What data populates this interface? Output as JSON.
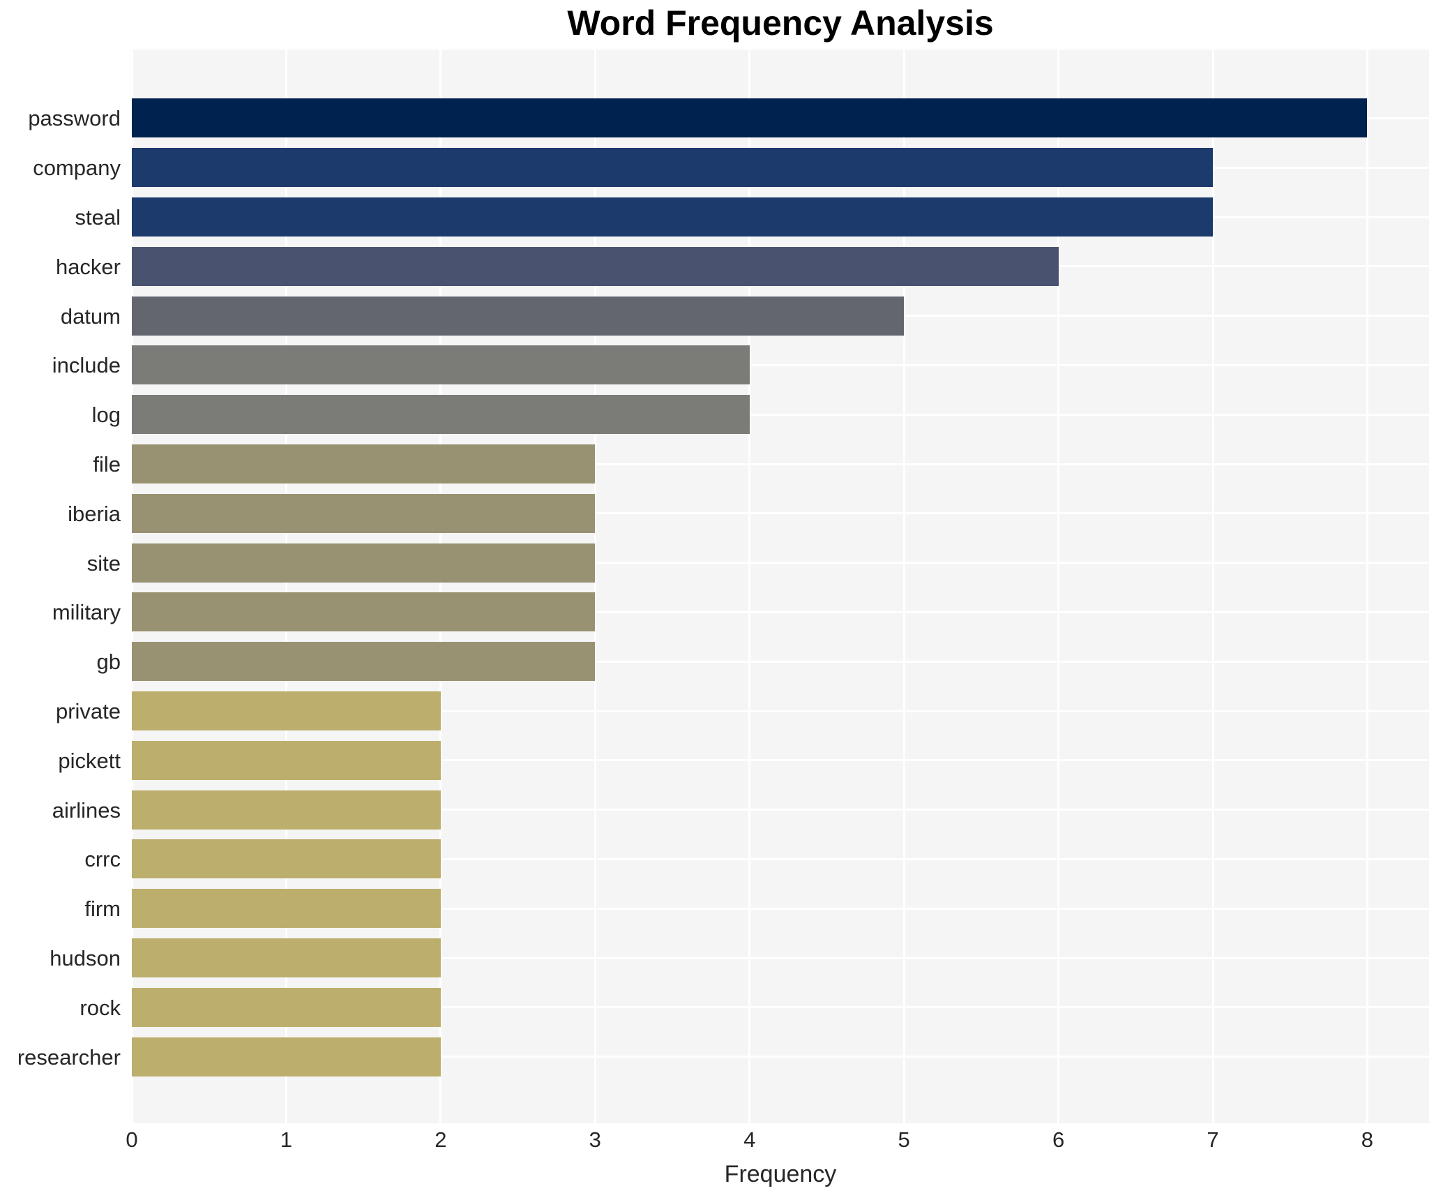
{
  "chart_data": {
    "type": "bar",
    "orientation": "horizontal",
    "title": "Word Frequency Analysis",
    "xlabel": "Frequency",
    "ylabel": "",
    "categories": [
      "password",
      "company",
      "steal",
      "hacker",
      "datum",
      "include",
      "log",
      "file",
      "iberia",
      "site",
      "military",
      "gb",
      "private",
      "pickett",
      "airlines",
      "crrc",
      "firm",
      "hudson",
      "rock",
      "researcher"
    ],
    "values": [
      8,
      7,
      7,
      6,
      5,
      4,
      4,
      3,
      3,
      3,
      3,
      3,
      2,
      2,
      2,
      2,
      2,
      2,
      2,
      2
    ],
    "bar_colors": [
      "#00224e",
      "#1d3a6d",
      "#1d3a6d",
      "#49536f",
      "#64666f",
      "#7b7b78",
      "#7b7b78",
      "#999272",
      "#999272",
      "#999272",
      "#999272",
      "#999272",
      "#bcae6c",
      "#bcae6c",
      "#bcae6c",
      "#bcae6c",
      "#bcae6c",
      "#bcae6c",
      "#bcae6c",
      "#bcae6c"
    ],
    "xticks": [
      0,
      1,
      2,
      3,
      4,
      5,
      6,
      7,
      8
    ],
    "xlim": [
      0,
      8.4
    ],
    "grid": true,
    "legend": false,
    "plot_bg_color": "#f5f5f5",
    "grid_color": "#ffffff",
    "figure_bg_color": "#ffffff",
    "tick_label_color": "#262626",
    "title_color": "#000000"
  }
}
